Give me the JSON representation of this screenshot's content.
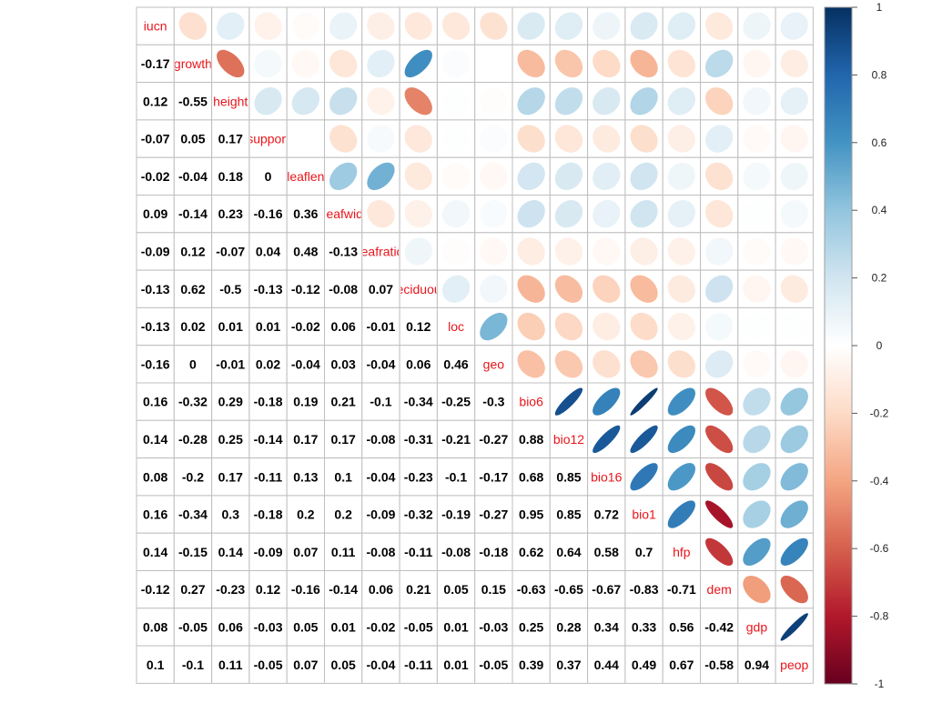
{
  "chart_data": {
    "type": "heatmap",
    "variables": [
      "iucn",
      "growth",
      "height",
      "support",
      "leaflen",
      "leafwid",
      "leafratio",
      "deciduous",
      "loc",
      "geo",
      "bio6",
      "bio12",
      "bio16",
      "bio1",
      "hfp",
      "dem",
      "gdp",
      "peop"
    ],
    "diagonal_labels": [
      "iucn",
      "growth",
      "height",
      "support",
      "leaflen",
      "leafwid",
      "leafratio",
      "deciduous",
      "loc",
      "geo",
      "bio6",
      "bio12",
      "bio16",
      "bio1",
      "hfp",
      "dem",
      "gdp",
      "peop"
    ],
    "lower_triangle": [
      [],
      [
        "-0.17"
      ],
      [
        "0.12",
        "-0.55"
      ],
      [
        "-0.07",
        "0.05",
        "0.17"
      ],
      [
        "-0.02",
        "-0.04",
        "0.18",
        "0"
      ],
      [
        "0.09",
        "-0.14",
        "0.23",
        "-0.16",
        "0.36"
      ],
      [
        "-0.09",
        "0.12",
        "-0.07",
        "0.04",
        "0.48",
        "-0.13"
      ],
      [
        "-0.13",
        "0.62",
        "-0.5",
        "-0.13",
        "-0.12",
        "-0.08",
        "0.07"
      ],
      [
        "-0.13",
        "0.02",
        "0.01",
        "0.01",
        "-0.02",
        "0.06",
        "-0.01",
        "0.12"
      ],
      [
        "-0.16",
        "0",
        "-0.01",
        "0.02",
        "-0.04",
        "0.03",
        "-0.04",
        "0.06",
        "0.46"
      ],
      [
        "0.16",
        "-0.32",
        "0.29",
        "-0.18",
        "0.19",
        "0.21",
        "-0.1",
        "-0.34",
        "-0.25",
        "-0.3"
      ],
      [
        "0.14",
        "-0.28",
        "0.25",
        "-0.14",
        "0.17",
        "0.17",
        "-0.08",
        "-0.31",
        "-0.21",
        "-0.27",
        "0.88"
      ],
      [
        "0.08",
        "-0.2",
        "0.17",
        "-0.11",
        "0.13",
        "0.1",
        "-0.04",
        "-0.23",
        "-0.1",
        "-0.17",
        "0.68",
        "0.85"
      ],
      [
        "0.16",
        "-0.34",
        "0.3",
        "-0.18",
        "0.2",
        "0.2",
        "-0.09",
        "-0.32",
        "-0.19",
        "-0.27",
        "0.95",
        "0.85",
        "0.72"
      ],
      [
        "0.14",
        "-0.15",
        "0.14",
        "-0.09",
        "0.07",
        "0.11",
        "-0.08",
        "-0.11",
        "-0.08",
        "-0.18",
        "0.62",
        "0.64",
        "0.58",
        "0.7"
      ],
      [
        "-0.12",
        "0.27",
        "-0.23",
        "0.12",
        "-0.16",
        "-0.14",
        "0.06",
        "0.21",
        "0.05",
        "0.15",
        "-0.63",
        "-0.65",
        "-0.67",
        "-0.83",
        "-0.71"
      ],
      [
        "0.08",
        "-0.05",
        "0.06",
        "-0.03",
        "0.05",
        "0.01",
        "-0.02",
        "-0.05",
        "0.01",
        "-0.03",
        "0.25",
        "0.28",
        "0.34",
        "0.33",
        "0.56",
        "-0.42"
      ],
      [
        "0.1",
        "-0.1",
        "0.11",
        "-0.05",
        "0.07",
        "0.05",
        "-0.04",
        "-0.11",
        "0.01",
        "-0.05",
        "0.39",
        "0.37",
        "0.44",
        "0.49",
        "0.67",
        "-0.58",
        "0.94"
      ]
    ],
    "colorbar": {
      "ticks": [
        "1",
        "0.8",
        "0.6",
        "0.4",
        "0.2",
        "0",
        "-0.2",
        "-0.4",
        "-0.6",
        "-0.8",
        "-1"
      ],
      "colors": [
        "#67001F",
        "#B2182B",
        "#D6604D",
        "#F4A582",
        "#FDDBC7",
        "#FFFFFF",
        "#D1E5F0",
        "#92C5DE",
        "#4393C3",
        "#2166AC",
        "#053061"
      ]
    },
    "upper_glyph": "ellipse",
    "grid": true,
    "legend": "right"
  }
}
